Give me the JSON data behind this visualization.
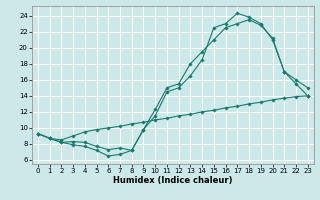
{
  "xlabel": "Humidex (Indice chaleur)",
  "bg_color": "#cce8e8",
  "grid_color": "#ffffff",
  "line_color": "#1a7a6e",
  "xlim": [
    -0.5,
    23.5
  ],
  "ylim": [
    5.5,
    25.2
  ],
  "xticks": [
    0,
    1,
    2,
    3,
    4,
    5,
    6,
    7,
    8,
    9,
    10,
    11,
    12,
    13,
    14,
    15,
    16,
    17,
    18,
    19,
    20,
    21,
    22,
    23
  ],
  "yticks": [
    6,
    8,
    10,
    12,
    14,
    16,
    18,
    20,
    22,
    24
  ],
  "line1_x": [
    0,
    1,
    2,
    3,
    4,
    5,
    6,
    7,
    8,
    9,
    10,
    11,
    12,
    13,
    14,
    15,
    16,
    17,
    18,
    19,
    20,
    21,
    22,
    23
  ],
  "line1_y": [
    9.3,
    8.7,
    8.2,
    7.9,
    7.7,
    7.2,
    6.5,
    6.7,
    7.2,
    9.8,
    12.3,
    15.0,
    15.5,
    18.0,
    19.5,
    21.0,
    22.5,
    23.0,
    23.5,
    22.8,
    21.2,
    17.0,
    15.5,
    14.0
  ],
  "line2_x": [
    0,
    1,
    2,
    3,
    4,
    5,
    6,
    7,
    8,
    9,
    10,
    11,
    12,
    13,
    14,
    15,
    16,
    17,
    18,
    19,
    20,
    21,
    22,
    23
  ],
  "line2_y": [
    9.3,
    8.7,
    8.2,
    8.3,
    8.2,
    7.7,
    7.3,
    7.5,
    7.2,
    9.8,
    11.5,
    14.5,
    15.0,
    16.5,
    18.5,
    22.5,
    23.0,
    24.3,
    23.8,
    23.0,
    21.0,
    17.0,
    16.0,
    15.0
  ],
  "line3_x": [
    0,
    1,
    2,
    3,
    4,
    5,
    6,
    7,
    8,
    9,
    10,
    11,
    12,
    13,
    14,
    15,
    16,
    17,
    18,
    19,
    20,
    21,
    22,
    23
  ],
  "line3_y": [
    9.3,
    8.7,
    8.5,
    9.0,
    9.5,
    9.8,
    10.0,
    10.2,
    10.5,
    10.7,
    11.0,
    11.2,
    11.5,
    11.7,
    12.0,
    12.2,
    12.5,
    12.7,
    13.0,
    13.2,
    13.5,
    13.7,
    13.9,
    14.0
  ],
  "tick_fontsize": 5.0,
  "xlabel_fontsize": 6.0,
  "marker_size": 1.8,
  "line_width": 0.8
}
